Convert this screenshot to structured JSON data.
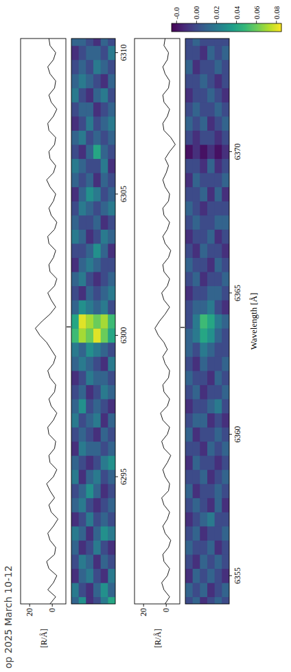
{
  "chart_data": [
    {
      "type": "line",
      "ylabel": "[R/Å]",
      "color": "#000000",
      "xlim": [
        6290.5,
        6310.5
      ],
      "ylim": [
        -12,
        28
      ],
      "yticks": [
        0,
        20
      ],
      "x": [
        6290.5,
        6290.75,
        6291,
        6291.25,
        6291.5,
        6291.75,
        6292,
        6292.25,
        6292.5,
        6292.75,
        6293,
        6293.25,
        6293.5,
        6293.75,
        6294,
        6294.25,
        6294.5,
        6294.75,
        6295,
        6295.25,
        6295.5,
        6295.75,
        6296,
        6296.25,
        6296.5,
        6296.75,
        6297,
        6297.25,
        6297.5,
        6297.75,
        6298,
        6298.25,
        6298.5,
        6298.75,
        6299,
        6299.25,
        6299.5,
        6299.75,
        6300,
        6300.25,
        6300.5,
        6300.75,
        6301,
        6301.25,
        6301.5,
        6301.75,
        6302,
        6302.25,
        6302.5,
        6302.75,
        6303,
        6303.25,
        6303.5,
        6303.75,
        6304,
        6304.25,
        6304.5,
        6304.75,
        6305,
        6305.25,
        6305.5,
        6305.75,
        6306,
        6306.25,
        6306.5,
        6306.75,
        6307,
        6307.25,
        6307.5,
        6307.75,
        6308,
        6308.25,
        6308.5,
        6308.75,
        6309,
        6309.25,
        6309.5,
        6309.75,
        6310,
        6310.25,
        6310.5
      ],
      "values": [
        2,
        -3,
        4,
        -1,
        -4,
        3,
        5,
        -2,
        -3,
        2,
        4,
        -1,
        -5,
        1,
        3,
        -2,
        2,
        5,
        -1,
        -4,
        2,
        3,
        -2,
        -3,
        3,
        4,
        -1,
        -4,
        1,
        3,
        -2,
        -3,
        2,
        4,
        -1,
        -3,
        1,
        5,
        11,
        15,
        9,
        2,
        -3,
        1,
        4,
        -2,
        -4,
        2,
        3,
        -1,
        -3,
        3,
        4,
        -2,
        -4,
        1,
        3,
        -1,
        -3,
        2,
        5,
        -1,
        -3,
        2,
        3,
        -2,
        -3,
        3,
        4,
        -1,
        -4,
        1,
        3,
        -2,
        -3,
        2,
        4,
        -1,
        -3,
        2,
        3
      ]
    },
    {
      "type": "heatmap",
      "xlim": [
        6290.5,
        6310.5
      ],
      "xticks": [
        6295,
        6300,
        6305,
        6310
      ],
      "line_position": 6300.3,
      "colorbar": {
        "lim": [
          -0.025,
          0.085
        ],
        "ticks": [
          {
            "value": -0.02,
            "label": "-0.0"
          },
          {
            "value": 0,
            "label": "0.00"
          },
          0.02,
          0.04,
          0.06,
          0.08
        ]
      },
      "x": [
        6290.5,
        6291,
        6291.5,
        6292,
        6292.5,
        6293,
        6293.5,
        6294,
        6294.5,
        6295,
        6295.5,
        6296,
        6296.5,
        6297,
        6297.5,
        6298,
        6298.5,
        6299,
        6299.5,
        6300,
        6300.5,
        6301,
        6301.5,
        6302,
        6302.5,
        6303,
        6303.5,
        6304,
        6304.5,
        6305,
        6305.5,
        6306,
        6306.5,
        6307,
        6307.5,
        6308,
        6308.5,
        6309,
        6309.5,
        6310,
        6310.5
      ],
      "cells": [
        [
          0.01,
          0.03,
          -0.01,
          0.0,
          0.02,
          0.04
        ],
        [
          0.02,
          0.0,
          -0.01,
          0.01,
          0.03,
          0.01
        ],
        [
          -0.01,
          0.01,
          0.02,
          0.0,
          -0.01,
          0.02
        ],
        [
          0.0,
          0.02,
          0.01,
          -0.01,
          0.01,
          0.0
        ],
        [
          0.01,
          -0.01,
          0.0,
          0.02,
          0.0,
          -0.01
        ],
        [
          0.02,
          0.01,
          -0.01,
          0.01,
          0.03,
          0.02
        ],
        [
          -0.01,
          0.0,
          0.02,
          0.0,
          0.01,
          0.0
        ],
        [
          0.01,
          0.02,
          0.0,
          -0.01,
          0.0,
          0.01
        ],
        [
          0.0,
          0.01,
          0.03,
          0.01,
          -0.01,
          0.0
        ],
        [
          0.02,
          -0.01,
          0.01,
          0.02,
          0.0,
          0.01
        ],
        [
          0.01,
          0.0,
          -0.01,
          0.0,
          0.02,
          0.03
        ],
        [
          -0.01,
          0.02,
          0.01,
          0.01,
          0.0,
          0.01
        ],
        [
          0.0,
          0.01,
          0.0,
          -0.01,
          0.01,
          0.0
        ],
        [
          0.02,
          0.0,
          0.01,
          0.02,
          -0.01,
          0.01
        ],
        [
          0.01,
          0.03,
          0.0,
          0.01,
          0.0,
          -0.01
        ],
        [
          0.0,
          0.01,
          -0.01,
          0.0,
          0.02,
          0.01
        ],
        [
          -0.01,
          0.0,
          0.02,
          0.01,
          0.01,
          0.0
        ],
        [
          0.01,
          0.02,
          0.01,
          0.0,
          -0.01,
          0.02
        ],
        [
          0.02,
          0.01,
          0.03,
          0.02,
          0.01,
          0.0
        ],
        [
          0.05,
          0.07,
          0.06,
          0.08,
          0.06,
          0.04
        ],
        [
          0.04,
          0.08,
          0.07,
          0.06,
          0.07,
          0.05
        ],
        [
          0.01,
          0.03,
          0.02,
          0.01,
          0.02,
          0.0
        ],
        [
          0.0,
          -0.01,
          0.01,
          0.0,
          0.01,
          0.02
        ],
        [
          0.01,
          0.02,
          0.0,
          -0.01,
          0.0,
          0.01
        ],
        [
          -0.01,
          0.01,
          0.02,
          0.01,
          0.0,
          0.0
        ],
        [
          0.0,
          0.0,
          0.01,
          0.03,
          0.01,
          -0.01
        ],
        [
          0.02,
          0.01,
          -0.01,
          0.0,
          0.02,
          0.01
        ],
        [
          0.01,
          0.0,
          0.0,
          0.01,
          -0.01,
          0.0
        ],
        [
          0.0,
          0.02,
          0.01,
          0.0,
          0.01,
          0.02
        ],
        [
          -0.01,
          0.01,
          0.03,
          0.02,
          0.0,
          0.01
        ],
        [
          0.01,
          0.0,
          0.01,
          -0.01,
          0.01,
          0.0
        ],
        [
          0.02,
          0.01,
          0.0,
          0.0,
          0.02,
          -0.01
        ],
        [
          0.0,
          -0.01,
          0.01,
          0.04,
          0.01,
          0.0
        ],
        [
          0.01,
          0.02,
          0.0,
          0.01,
          0.0,
          0.01
        ],
        [
          -0.01,
          0.0,
          0.02,
          0.0,
          0.01,
          0.02
        ],
        [
          0.0,
          0.01,
          0.01,
          -0.01,
          0.0,
          0.01
        ],
        [
          0.02,
          0.0,
          -0.01,
          0.01,
          0.02,
          0.0
        ],
        [
          0.01,
          0.02,
          0.01,
          0.0,
          -0.01,
          0.01
        ],
        [
          0.0,
          0.01,
          0.0,
          0.02,
          0.01,
          0.0
        ],
        [
          -0.01,
          0.0,
          0.01,
          0.01,
          0.0,
          0.02
        ],
        [
          0.01,
          0.01,
          0.0,
          -0.01,
          0.01,
          0.0
        ]
      ]
    },
    {
      "type": "line",
      "ylabel": "[R/Å]",
      "color": "#000000",
      "xlim": [
        6354,
        6374
      ],
      "ylim": [
        -12,
        28
      ],
      "yticks": [
        0,
        20
      ],
      "x": [
        6354,
        6354.25,
        6354.5,
        6354.75,
        6355,
        6355.25,
        6355.5,
        6355.75,
        6356,
        6356.25,
        6356.5,
        6356.75,
        6357,
        6357.25,
        6357.5,
        6357.75,
        6358,
        6358.25,
        6358.5,
        6358.75,
        6359,
        6359.25,
        6359.5,
        6359.75,
        6360,
        6360.25,
        6360.5,
        6360.75,
        6361,
        6361.25,
        6361.5,
        6361.75,
        6362,
        6362.25,
        6362.5,
        6362.75,
        6363,
        6363.25,
        6363.5,
        6363.75,
        6364,
        6364.25,
        6364.5,
        6364.75,
        6365,
        6365.25,
        6365.5,
        6365.75,
        6366,
        6366.25,
        6366.5,
        6366.75,
        6367,
        6367.25,
        6367.5,
        6367.75,
        6368,
        6368.25,
        6368.5,
        6368.75,
        6369,
        6369.25,
        6369.5,
        6369.75,
        6370,
        6370.25,
        6370.5,
        6370.75,
        6371,
        6371.25,
        6371.5,
        6371.75,
        6372,
        6372.25,
        6372.5,
        6372.75,
        6373,
        6373.25,
        6373.5,
        6373.75,
        6374
      ],
      "values": [
        1,
        -3,
        2,
        4,
        -1,
        -3,
        2,
        3,
        -2,
        -4,
        1,
        3,
        -1,
        -3,
        2,
        4,
        -2,
        -3,
        1,
        3,
        -1,
        -4,
        2,
        4,
        -1,
        -3,
        3,
        5,
        -1,
        -3,
        2,
        3,
        -2,
        -3,
        1,
        3,
        -1,
        2,
        7,
        10,
        6,
        1,
        -3,
        2,
        4,
        -1,
        -3,
        2,
        3,
        -2,
        -4,
        1,
        3,
        -1,
        -3,
        2,
        3,
        -2,
        -3,
        1,
        3,
        0,
        -2,
        1,
        -3,
        -8,
        -4,
        2,
        3,
        -1,
        -3,
        2,
        3,
        -2,
        -3,
        1,
        3,
        -1,
        -2,
        2,
        1
      ]
    },
    {
      "type": "heatmap",
      "xlim": [
        6354,
        6374
      ],
      "xticks": [
        6355,
        6360,
        6365,
        6370
      ],
      "line_position": 6363.78,
      "xlabel": "Wavelength [Å]",
      "x": [
        6354,
        6354.5,
        6355,
        6355.5,
        6356,
        6356.5,
        6357,
        6357.5,
        6358,
        6358.5,
        6359,
        6359.5,
        6360,
        6360.5,
        6361,
        6361.5,
        6362,
        6362.5,
        6363,
        6363.5,
        6364,
        6364.5,
        6365,
        6365.5,
        6366,
        6366.5,
        6367,
        6367.5,
        6368,
        6368.5,
        6369,
        6369.5,
        6370,
        6370.5,
        6371,
        6371.5,
        6372,
        6372.5,
        6373,
        6373.5,
        6374
      ],
      "cells": [
        [
          0.0,
          0.01,
          -0.01,
          0.0,
          0.01,
          0.0
        ],
        [
          0.01,
          0.0,
          0.01,
          -0.01,
          0.0,
          0.01
        ],
        [
          -0.01,
          0.01,
          0.0,
          0.01,
          0.0,
          -0.01
        ],
        [
          0.0,
          -0.01,
          0.01,
          0.0,
          0.01,
          0.0
        ],
        [
          0.01,
          0.0,
          0.0,
          0.01,
          -0.01,
          0.0
        ],
        [
          0.0,
          0.01,
          -0.01,
          0.0,
          0.0,
          0.01
        ],
        [
          -0.01,
          0.0,
          0.01,
          0.02,
          0.0,
          0.0
        ],
        [
          0.0,
          0.01,
          0.0,
          -0.01,
          0.01,
          -0.01
        ],
        [
          0.01,
          -0.01,
          0.0,
          0.0,
          0.01,
          0.0
        ],
        [
          0.0,
          0.0,
          0.01,
          -0.01,
          0.0,
          0.01
        ],
        [
          -0.01,
          0.01,
          0.0,
          0.0,
          -0.01,
          0.0
        ],
        [
          0.0,
          0.0,
          -0.01,
          0.01,
          0.0,
          0.01
        ],
        [
          0.01,
          -0.01,
          0.0,
          0.0,
          0.01,
          0.0
        ],
        [
          0.0,
          0.01,
          0.01,
          -0.01,
          0.0,
          -0.01
        ],
        [
          -0.01,
          0.0,
          0.0,
          0.01,
          0.02,
          0.0
        ],
        [
          0.0,
          0.01,
          -0.01,
          0.0,
          0.0,
          0.01
        ],
        [
          0.01,
          0.0,
          0.0,
          -0.01,
          0.01,
          0.0
        ],
        [
          0.0,
          -0.01,
          0.01,
          0.0,
          0.0,
          0.01
        ],
        [
          0.01,
          0.0,
          0.02,
          0.01,
          0.0,
          0.0
        ],
        [
          0.01,
          0.02,
          0.04,
          0.03,
          0.01,
          0.0
        ],
        [
          0.0,
          0.02,
          0.05,
          0.04,
          0.02,
          0.01
        ],
        [
          0.0,
          0.01,
          0.01,
          0.02,
          0.0,
          -0.01
        ],
        [
          -0.01,
          0.0,
          0.0,
          0.01,
          0.01,
          0.0
        ],
        [
          0.0,
          0.01,
          -0.01,
          0.0,
          0.0,
          0.01
        ],
        [
          0.01,
          0.0,
          0.0,
          -0.01,
          0.01,
          0.0
        ],
        [
          0.0,
          -0.01,
          0.01,
          0.0,
          0.0,
          -0.01
        ],
        [
          -0.01,
          0.0,
          0.0,
          0.01,
          -0.01,
          0.0
        ],
        [
          0.0,
          0.01,
          0.0,
          0.0,
          0.01,
          0.01
        ],
        [
          0.01,
          0.0,
          -0.01,
          0.0,
          0.0,
          0.0
        ],
        [
          0.0,
          0.0,
          0.01,
          -0.01,
          0.01,
          -0.01
        ],
        [
          -0.01,
          0.01,
          0.0,
          0.0,
          0.0,
          0.01
        ],
        [
          0.0,
          0.0,
          -0.01,
          0.01,
          -0.01,
          0.0
        ],
        [
          -0.02,
          -0.01,
          -0.02,
          -0.01,
          -0.02,
          -0.01
        ],
        [
          0.0,
          -0.01,
          0.0,
          0.0,
          -0.01,
          0.0
        ],
        [
          0.01,
          0.0,
          0.01,
          -0.01,
          0.0,
          0.01
        ],
        [
          0.0,
          0.01,
          0.0,
          0.0,
          0.01,
          0.0
        ],
        [
          -0.01,
          0.0,
          0.0,
          0.01,
          0.0,
          -0.01
        ],
        [
          0.0,
          0.0,
          0.01,
          0.0,
          -0.01,
          0.0
        ],
        [
          0.01,
          -0.01,
          0.0,
          0.0,
          0.01,
          0.0
        ],
        [
          0.0,
          0.0,
          -0.01,
          0.01,
          0.0,
          0.01
        ],
        [
          0.0,
          0.01,
          0.0,
          0.0,
          0.0,
          0.0
        ]
      ]
    }
  ],
  "footer": "op 2025 March 10-12"
}
